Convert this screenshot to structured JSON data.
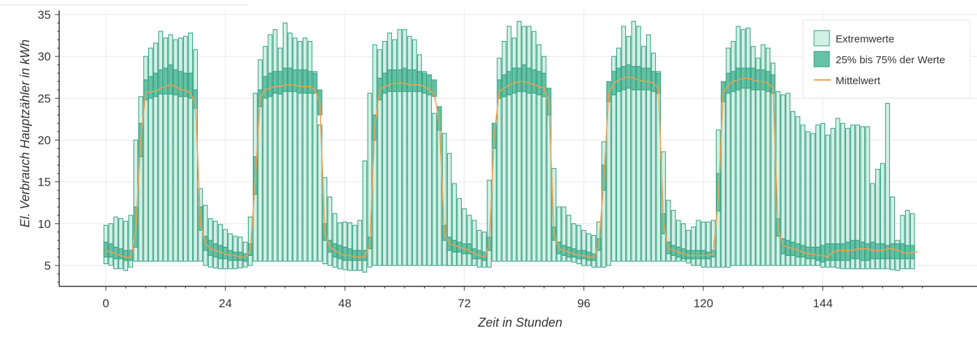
{
  "chart_data": {
    "type": "bar",
    "xlabel": "Zeit in Stunden",
    "ylabel": "El. Verbrauch Hauptzähler in kWh",
    "xlim": [
      -1,
      166
    ],
    "ylim": [
      2.5,
      35.5
    ],
    "x_ticks": [
      0,
      24,
      48,
      72,
      96,
      120,
      144
    ],
    "y_ticks": [
      5,
      10,
      15,
      20,
      25,
      30,
      35
    ],
    "grid": true,
    "legend_position": "top-right",
    "colors": {
      "extreme_fill": "#d3f0e5",
      "extreme_stroke": "#2a9d7c",
      "iqr_fill": "#66c2a5",
      "mean_line": "#f0a050",
      "axis": "#333333",
      "grid": "#e8e8e8"
    },
    "legend": {
      "extreme": "Extremwerte",
      "iqr": "25% bis 75% der Werte",
      "mean": "Mittelwert"
    },
    "series": [
      {
        "name": "Extremwerte",
        "min": [
          5.2,
          5.0,
          4.6,
          4.6,
          4.4,
          4.8,
          5.5,
          5.5,
          5.5,
          5.5,
          5.5,
          5.5,
          5.5,
          5.5,
          5.5,
          5.5,
          5.5,
          5.5,
          5.5,
          5.5,
          5.0,
          4.8,
          4.7,
          4.6,
          4.6,
          4.6,
          4.6,
          4.7,
          4.8,
          5.0,
          5.5,
          5.5,
          5.5,
          5.5,
          5.5,
          5.5,
          5.5,
          5.5,
          5.5,
          5.5,
          5.5,
          5.5,
          5.5,
          5.5,
          5.2,
          5.0,
          4.8,
          4.6,
          4.5,
          4.4,
          4.4,
          4.4,
          4.2,
          4.8,
          5.0,
          5.0,
          5.0,
          5.0,
          5.0,
          5.0,
          5.0,
          5.0,
          5.0,
          5.0,
          5.0,
          5.0,
          5.0,
          5.0,
          5.0,
          5.0,
          5.0,
          5.0,
          5.0,
          5.0,
          5.0,
          4.8,
          4.8,
          4.8,
          5.5,
          5.5,
          5.5,
          5.5,
          5.5,
          5.5,
          5.5,
          5.5,
          5.5,
          5.5,
          5.5,
          5.5,
          5.5,
          5.5,
          5.5,
          5.5,
          5.4,
          5.2,
          5.0,
          5.0,
          4.8,
          4.8,
          4.8,
          5.0,
          5.5,
          5.5,
          5.5,
          5.5,
          5.5,
          5.5,
          5.5,
          5.5,
          5.5,
          5.5,
          5.5,
          5.5,
          5.5,
          5.5,
          5.5,
          5.3,
          5.0,
          5.0,
          4.8,
          4.8,
          4.8,
          4.8,
          4.8,
          4.8,
          5.0,
          5.0,
          5.0,
          5.0,
          5.0,
          5.0,
          5.0,
          5.0,
          5.0,
          5.0,
          5.0,
          5.0,
          5.0,
          5.0,
          5.0,
          5.0,
          5.0,
          5.0,
          4.8,
          4.8,
          4.8,
          4.7,
          4.6,
          4.6,
          4.6,
          4.6,
          4.6,
          4.6,
          4.6,
          4.6,
          4.6,
          4.6,
          4.5,
          4.4,
          4.6,
          4.6,
          4.6,
          4.6
        ],
        "max": [
          9.8,
          10.0,
          10.8,
          10.6,
          10.3,
          11.0,
          20.0,
          25.2,
          30.0,
          31.0,
          31.6,
          33.0,
          32.2,
          32.6,
          32.0,
          32.2,
          32.4,
          32.8,
          30.8,
          14.2,
          12.2,
          10.6,
          10.3,
          9.9,
          9.3,
          8.8,
          8.5,
          8.4,
          7.8,
          10.8,
          25.6,
          29.6,
          31.2,
          32.6,
          33.2,
          31.0,
          34.0,
          32.8,
          32.2,
          31.8,
          32.2,
          31.8,
          28.2,
          21.8,
          15.5,
          13.2,
          11.2,
          10.1,
          10.2,
          10.1,
          9.8,
          10.4,
          17.5,
          25.6,
          31.4,
          30.8,
          31.8,
          32.8,
          32.0,
          33.2,
          33.2,
          32.4,
          32.0,
          30.2,
          28.2,
          25.8,
          23.2,
          22.2,
          20.8,
          18.4,
          14.8,
          13.0,
          11.8,
          11.0,
          10.4,
          9.2,
          9.0,
          15.2,
          22.0,
          29.8,
          31.8,
          33.6,
          32.2,
          34.2,
          33.6,
          33.6,
          33.0,
          31.4,
          30.0,
          24.2,
          16.6,
          12.0,
          12.0,
          11.0,
          10.0,
          9.8,
          9.2,
          8.8,
          8.6,
          10.2,
          19.8,
          25.2,
          30.0,
          31.0,
          33.6,
          32.4,
          34.2,
          33.6,
          31.2,
          32.6,
          30.4,
          28.2,
          18.6,
          12.8,
          11.6,
          10.4,
          10.0,
          9.2,
          9.6,
          10.4,
          10.2,
          10.2,
          10.4,
          21.2,
          25.4,
          31.0,
          31.8,
          33.6,
          33.2,
          33.4,
          31.2,
          29.8,
          31.4,
          31.0,
          29.2,
          25.8,
          25.4,
          25.6,
          23.4,
          22.8,
          21.8,
          21.0,
          20.8,
          21.8,
          22.0,
          20.6,
          21.4,
          22.6,
          22.0,
          21.4,
          21.8,
          21.8,
          21.6,
          21.6,
          14.8,
          16.5,
          17.2,
          24.4,
          13.2,
          8.0,
          11.0,
          11.6,
          11.2
        ]
      },
      {
        "name": "25% bis 75% der Werte",
        "q1": [
          6.0,
          6.0,
          5.8,
          5.8,
          5.6,
          5.6,
          7.2,
          18.0,
          24.8,
          25.0,
          25.2,
          25.5,
          25.5,
          25.5,
          25.4,
          25.2,
          25.2,
          25.0,
          23.8,
          9.2,
          6.8,
          6.2,
          6.0,
          5.8,
          5.8,
          5.6,
          5.6,
          5.6,
          5.5,
          6.2,
          13.5,
          24.0,
          25.0,
          25.2,
          25.6,
          25.5,
          25.8,
          25.8,
          25.8,
          25.6,
          25.6,
          25.6,
          25.6,
          23.0,
          8.0,
          6.6,
          6.0,
          5.8,
          5.6,
          5.6,
          5.6,
          5.6,
          5.6,
          7.0,
          20.0,
          24.8,
          25.6,
          25.8,
          25.8,
          25.8,
          25.8,
          25.8,
          25.8,
          25.8,
          25.6,
          25.4,
          25.2,
          21.2,
          8.0,
          6.8,
          6.6,
          6.6,
          6.4,
          6.4,
          5.8,
          5.8,
          5.6,
          6.8,
          19.0,
          25.0,
          25.2,
          25.4,
          25.6,
          25.8,
          25.8,
          25.6,
          25.6,
          25.4,
          25.2,
          23.0,
          8.0,
          6.4,
          6.2,
          6.0,
          6.0,
          5.8,
          5.8,
          5.6,
          5.6,
          6.8,
          14.0,
          24.6,
          25.4,
          25.8,
          26.0,
          26.2,
          26.0,
          26.0,
          26.0,
          26.0,
          25.8,
          25.6,
          8.8,
          6.4,
          6.2,
          6.0,
          5.8,
          5.8,
          5.8,
          5.8,
          5.8,
          5.8,
          6.0,
          11.5,
          24.6,
          25.6,
          25.8,
          26.0,
          26.2,
          26.2,
          26.0,
          26.0,
          26.0,
          25.8,
          25.6,
          8.5,
          6.4,
          6.2,
          6.2,
          6.0,
          6.0,
          5.8,
          5.8,
          5.6,
          5.4,
          5.6,
          5.6,
          5.6,
          5.6,
          5.6,
          5.8,
          5.8,
          5.6,
          5.6,
          5.8,
          5.8,
          5.8,
          5.8,
          5.8,
          5.8,
          5.8,
          5.8,
          5.8,
          5.8
        ],
        "q3": [
          7.8,
          7.6,
          7.2,
          7.0,
          6.8,
          6.8,
          12.0,
          22.0,
          27.2,
          27.6,
          28.0,
          28.4,
          28.6,
          29.0,
          28.4,
          28.2,
          28.0,
          28.0,
          26.0,
          12.0,
          8.5,
          8.0,
          7.6,
          7.4,
          7.2,
          6.8,
          6.6,
          6.6,
          6.4,
          7.6,
          18.0,
          26.0,
          27.6,
          28.0,
          28.2,
          28.2,
          28.6,
          28.6,
          28.4,
          28.4,
          28.4,
          28.2,
          28.0,
          26.0,
          10.0,
          8.0,
          7.6,
          7.4,
          7.2,
          7.0,
          6.8,
          6.8,
          6.8,
          8.4,
          23.0,
          27.4,
          28.0,
          28.4,
          28.4,
          28.4,
          28.6,
          28.4,
          28.4,
          28.2,
          28.0,
          27.8,
          27.2,
          24.0,
          9.8,
          8.4,
          8.0,
          7.8,
          7.6,
          7.6,
          7.0,
          6.8,
          6.6,
          8.4,
          22.0,
          27.2,
          27.8,
          28.2,
          28.6,
          28.6,
          29.0,
          28.6,
          28.4,
          28.2,
          28.0,
          26.2,
          9.6,
          7.8,
          7.4,
          7.2,
          7.0,
          6.8,
          6.8,
          6.6,
          6.4,
          8.2,
          17.0,
          27.0,
          28.2,
          28.6,
          28.8,
          29.0,
          28.8,
          28.8,
          28.6,
          28.6,
          28.2,
          28.0,
          11.2,
          7.8,
          7.4,
          7.2,
          7.0,
          6.8,
          6.8,
          6.8,
          6.8,
          6.6,
          6.8,
          16.0,
          27.0,
          28.0,
          28.2,
          28.6,
          28.6,
          28.6,
          28.6,
          28.4,
          28.4,
          28.2,
          27.8,
          10.6,
          8.2,
          8.0,
          7.8,
          7.6,
          7.4,
          7.2,
          7.2,
          7.2,
          7.4,
          7.6,
          7.6,
          7.6,
          7.6,
          7.8,
          8.0,
          8.0,
          7.8,
          7.6,
          7.8,
          7.6,
          7.6,
          7.4,
          7.6,
          7.6,
          7.6,
          7.4,
          7.4,
          7.2
        ],
        "widths_note": ""
      },
      {
        "name": "Mittelwert",
        "mean": [
          6.8,
          6.6,
          6.4,
          6.2,
          6.0,
          6.0,
          9.0,
          20.0,
          25.6,
          25.8,
          25.8,
          26.2,
          26.4,
          26.6,
          26.4,
          26.0,
          26.0,
          25.6,
          24.4,
          10.0,
          7.6,
          7.0,
          6.8,
          6.6,
          6.4,
          6.2,
          6.2,
          6.0,
          6.0,
          6.8,
          15.0,
          25.0,
          26.0,
          26.2,
          26.4,
          26.4,
          26.6,
          26.6,
          26.6,
          26.4,
          26.4,
          26.4,
          26.0,
          24.4,
          8.8,
          7.2,
          6.8,
          6.4,
          6.2,
          6.2,
          6.0,
          6.0,
          6.0,
          7.4,
          21.5,
          26.0,
          26.4,
          26.6,
          26.8,
          26.8,
          26.8,
          26.6,
          26.6,
          26.6,
          26.4,
          26.0,
          25.4,
          22.0,
          8.8,
          7.6,
          7.4,
          7.2,
          7.0,
          6.8,
          6.4,
          6.2,
          6.0,
          7.4,
          20.5,
          25.8,
          26.2,
          26.6,
          26.8,
          27.0,
          27.0,
          26.8,
          26.6,
          26.4,
          26.2,
          24.4,
          8.8,
          7.0,
          6.8,
          6.6,
          6.4,
          6.2,
          6.2,
          6.0,
          6.0,
          7.4,
          15.0,
          25.6,
          26.8,
          27.2,
          27.4,
          27.6,
          27.4,
          27.2,
          27.0,
          27.0,
          26.8,
          26.2,
          10.0,
          7.0,
          6.8,
          6.6,
          6.4,
          6.2,
          6.2,
          6.2,
          6.2,
          6.2,
          6.4,
          13.0,
          25.6,
          26.6,
          27.0,
          27.2,
          27.4,
          27.4,
          27.2,
          27.0,
          27.0,
          26.8,
          26.2,
          9.4,
          7.4,
          7.2,
          7.0,
          6.8,
          6.6,
          6.4,
          6.4,
          6.2,
          6.2,
          6.0,
          6.6,
          6.8,
          6.8,
          6.8,
          6.8,
          7.0,
          7.0,
          7.0,
          6.8,
          6.8,
          6.8,
          7.0,
          7.0,
          6.8,
          6.6,
          6.4,
          6.6,
          6.6
        ]
      }
    ]
  }
}
